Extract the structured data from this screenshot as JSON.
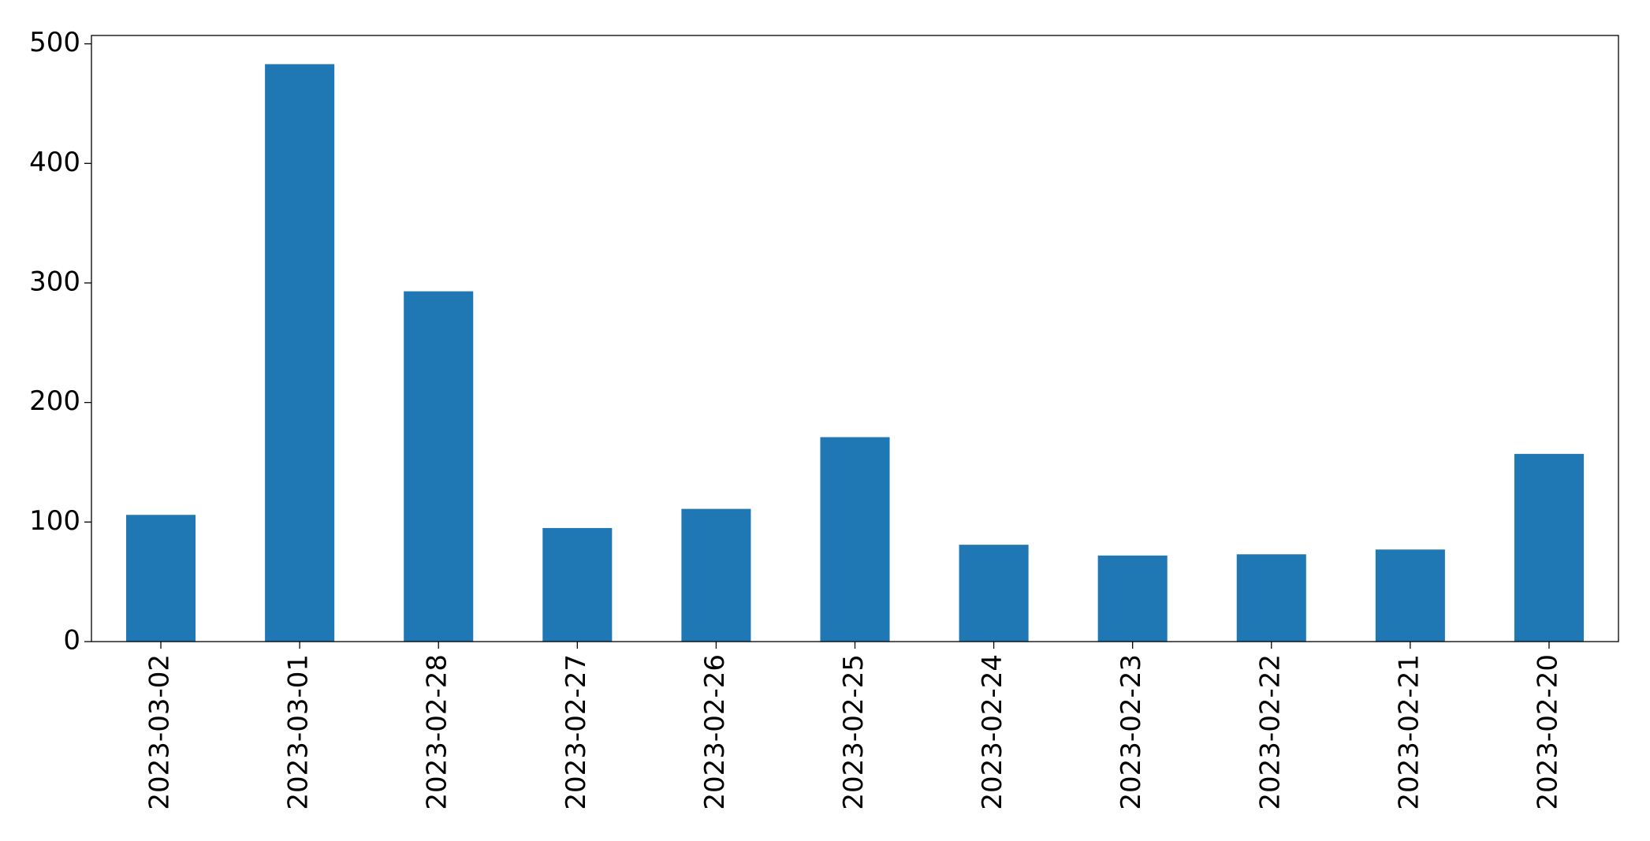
{
  "chart_data": {
    "type": "bar",
    "categories": [
      "2023-03-02",
      "2023-03-01",
      "2023-02-28",
      "2023-02-27",
      "2023-02-26",
      "2023-02-25",
      "2023-02-24",
      "2023-02-23",
      "2023-02-22",
      "2023-02-21",
      "2023-02-20"
    ],
    "values": [
      106,
      483,
      293,
      95,
      111,
      171,
      81,
      72,
      73,
      77,
      157
    ],
    "color": "#1f77b4",
    "ylim": [
      0,
      507
    ],
    "yticks": [
      0,
      100,
      200,
      300,
      400,
      500
    ],
    "grid": false
  }
}
